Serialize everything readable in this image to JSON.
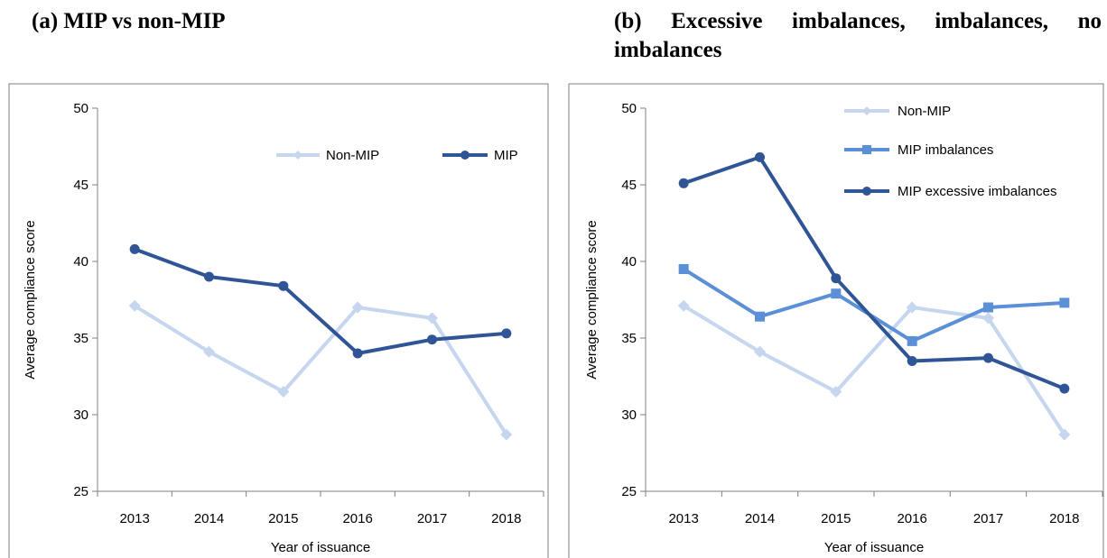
{
  "panels": {
    "a": {
      "title": "(a) MIP vs non-MIP"
    },
    "b": {
      "title": "(b) Excessive imbalances, imbalances, no imbalances"
    }
  },
  "colors": {
    "non_mip": "#c5d6ee",
    "mip": "#2f5597",
    "mip_imbalances": "#5b8fd6",
    "mip_excessive": "#2f5597",
    "frame": "#7f7f7f"
  },
  "chart_data": [
    {
      "type": "line",
      "title": "(a) MIP vs non-MIP",
      "xlabel": "Year of issuance",
      "ylabel": "Average compliance score",
      "categories": [
        "2013",
        "2014",
        "2015",
        "2016",
        "2017",
        "2018"
      ],
      "ylim": [
        25,
        50
      ],
      "yticks": [
        25,
        30,
        35,
        40,
        45,
        50
      ],
      "legend": "top-right",
      "grid": false,
      "series": [
        {
          "name": "Non-MIP",
          "values": [
            37.1,
            34.1,
            31.5,
            37.0,
            36.3,
            28.7
          ],
          "color": "#c5d6ee",
          "marker": "diamond"
        },
        {
          "name": "MIP",
          "values": [
            40.8,
            39.0,
            38.4,
            34.0,
            34.9,
            35.3
          ],
          "color": "#2f5597",
          "marker": "circle"
        }
      ]
    },
    {
      "type": "line",
      "title": "(b) Excessive imbalances, imbalances, no imbalances",
      "xlabel": "Year of issuance",
      "ylabel": "Average compliance score",
      "categories": [
        "2013",
        "2014",
        "2015",
        "2016",
        "2017",
        "2018"
      ],
      "ylim": [
        25,
        50
      ],
      "yticks": [
        25,
        30,
        35,
        40,
        45,
        50
      ],
      "legend": "top-right",
      "grid": false,
      "series": [
        {
          "name": "Non-MIP",
          "values": [
            37.1,
            34.1,
            31.5,
            37.0,
            36.3,
            28.7
          ],
          "color": "#c5d6ee",
          "marker": "diamond"
        },
        {
          "name": "MIP imbalances",
          "values": [
            39.5,
            36.4,
            37.9,
            34.8,
            37.0,
            37.3
          ],
          "color": "#5b8fd6",
          "marker": "square"
        },
        {
          "name": "MIP excessive imbalances",
          "values": [
            45.1,
            46.8,
            38.9,
            33.5,
            33.7,
            31.7
          ],
          "color": "#2f5597",
          "marker": "circle"
        }
      ]
    }
  ]
}
